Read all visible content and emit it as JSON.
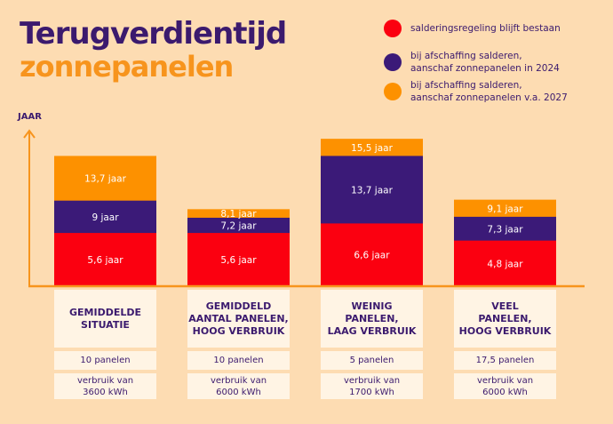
{
  "title_line1": "Terugverdientijd",
  "title_line2": "zonnepanelen",
  "colors": {
    "red": "#fb0010",
    "purple": "#3b1a78",
    "orange": "#fd9100",
    "axis": "#f7941d",
    "background": "#fddcb2"
  },
  "chart_data": {
    "type": "bar",
    "ylabel": "JAAR",
    "categories": [
      "GEMIDDELDE\nSITUATIE",
      "GEMIDDELD\nAANTAL PANELEN,\nHOOG VERBRUIK",
      "WEINIG\nPANELEN,\nLAAG VERBRUIK",
      "VEEL\nPANELEN,\nHOOG VERBRUIK"
    ],
    "series": [
      {
        "name": "salderingsregeling blijft bestaan",
        "color": "red",
        "values": [
          5.6,
          5.6,
          6.6,
          4.8
        ],
        "labels": [
          "5,6 jaar",
          "5,6 jaar",
          "6,6 jaar",
          "4,8 jaar"
        ]
      },
      {
        "name": "bij afschaffing salderen,\naanschaf zonnepanelen in 2024",
        "color": "purple",
        "values": [
          9,
          7.2,
          13.7,
          7.3
        ],
        "labels": [
          "9 jaar",
          "7,2 jaar",
          "13,7 jaar",
          "7,3 jaar"
        ]
      },
      {
        "name": "bij afschaffing salderen,\naanschaf zonnepanelen v.a. 2027",
        "color": "orange",
        "values": [
          13.7,
          8.1,
          15.5,
          9.1
        ],
        "labels": [
          "13,7 jaar",
          "8,1 jaar",
          "15,5 jaar",
          "9,1 jaar"
        ]
      }
    ],
    "legend": "top-right",
    "grid": false
  },
  "details": [
    {
      "panels": "10 panelen",
      "usage": "verbruik van\n3600 kWh"
    },
    {
      "panels": "10 panelen",
      "usage": "verbruik van\n6000 kWh"
    },
    {
      "panels": "5 panelen",
      "usage": "verbruik van\n1700 kWh"
    },
    {
      "panels": "17,5 panelen",
      "usage": "verbruik van\n6000 kWh"
    }
  ]
}
